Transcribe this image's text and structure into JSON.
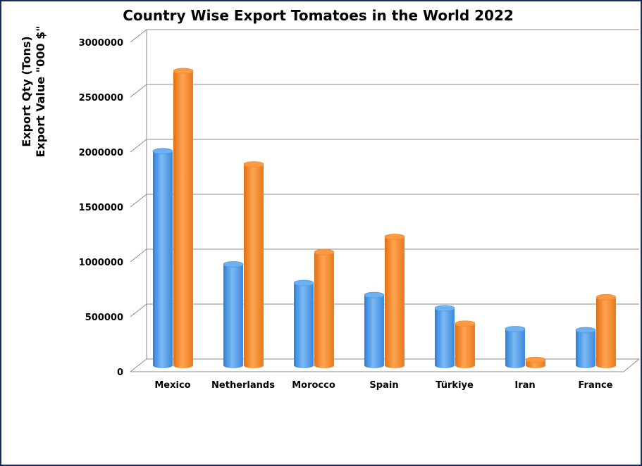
{
  "chart_data": {
    "type": "bar",
    "title": "Country Wise Export Tomatoes in the World 2022",
    "ylabel_line1": "Export Qty (Tons)",
    "ylabel_line2": "Export Value \"000 $\"",
    "categories": [
      "Mexico",
      "Netherlands",
      "Morocco",
      "Spain",
      "Türkiye",
      "Iran",
      "France"
    ],
    "series": [
      {
        "values": [
          1950000,
          920000,
          750000,
          640000,
          520000,
          330000,
          320000
        ],
        "color": "#4a9ae8"
      },
      {
        "values": [
          2680000,
          1830000,
          1030000,
          1170000,
          380000,
          50000,
          620000
        ],
        "color": "#f58a2a"
      }
    ],
    "ylim": [
      0,
      3000000
    ],
    "yticks": [
      "0",
      "500000",
      "1000000",
      "1500000",
      "2000000",
      "2500000",
      "3000000"
    ],
    "grid": true,
    "legend": "none"
  }
}
